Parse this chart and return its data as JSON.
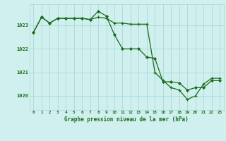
{
  "title": "Graphe pression niveau de la mer (hPa)",
  "background_color": "#cff0ee",
  "grid_color": "#aad8d4",
  "line_color": "#1a6b1a",
  "x_labels": [
    "0",
    "1",
    "2",
    "3",
    "4",
    "5",
    "6",
    "7",
    "8",
    "9",
    "10",
    "11",
    "12",
    "13",
    "14",
    "15",
    "16",
    "17",
    "18",
    "19",
    "20",
    "21",
    "22",
    "23"
  ],
  "ylim": [
    1019.4,
    1023.9
  ],
  "yticks": [
    1020,
    1021,
    1022,
    1023
  ],
  "series1": [
    1022.7,
    1023.35,
    1023.1,
    1023.3,
    1023.3,
    1023.3,
    1023.3,
    1023.25,
    1023.35,
    1023.3,
    1023.1,
    1023.1,
    1023.05,
    1023.05,
    1023.05,
    1021.0,
    1020.65,
    1020.35,
    1020.25,
    1019.85,
    1020.0,
    1020.5,
    1020.75,
    1020.75
  ],
  "series2": [
    1022.7,
    1023.35,
    1023.1,
    1023.3,
    1023.3,
    1023.3,
    1023.3,
    1023.25,
    1023.6,
    1023.4,
    1022.6,
    1022.0,
    1022.0,
    1022.0,
    1021.65,
    1021.6,
    1020.6,
    1020.6,
    1020.55,
    1020.25,
    1020.35,
    1020.35,
    1020.65,
    1020.65
  ]
}
